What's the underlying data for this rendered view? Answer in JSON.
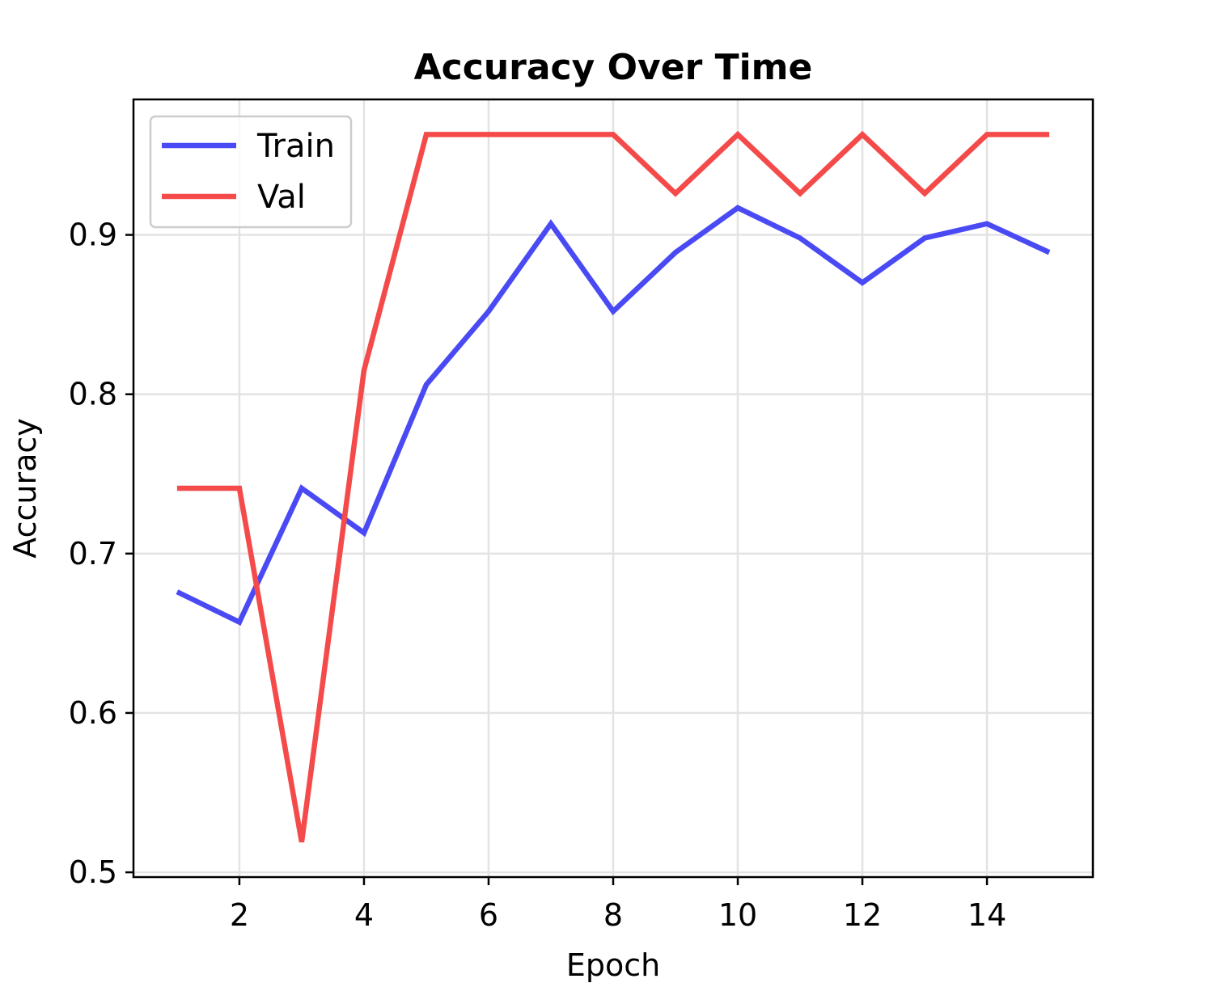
{
  "chart_data": {
    "type": "line",
    "title": "Accuracy Over Time",
    "xlabel": "Epoch",
    "ylabel": "Accuracy",
    "x": [
      1,
      2,
      3,
      4,
      5,
      6,
      7,
      8,
      9,
      10,
      11,
      12,
      13,
      14,
      15
    ],
    "series": [
      {
        "name": "Train",
        "color": "#4a4af5",
        "values": [
          0.676,
          0.657,
          0.741,
          0.713,
          0.806,
          0.852,
          0.907,
          0.852,
          0.889,
          0.917,
          0.898,
          0.87,
          0.898,
          0.907,
          0.889
        ]
      },
      {
        "name": "Val",
        "color": "#f54a4a",
        "values": [
          0.741,
          0.741,
          0.519,
          0.815,
          0.963,
          0.963,
          0.963,
          0.963,
          0.926,
          0.963,
          0.926,
          0.963,
          0.926,
          0.963,
          0.963
        ]
      }
    ],
    "xlim": [
      0.3,
      15.7
    ],
    "ylim": [
      0.497,
      0.985
    ],
    "xticks": [
      2,
      4,
      6,
      8,
      10,
      12,
      14
    ],
    "yticks": [
      0.5,
      0.6,
      0.7,
      0.8,
      0.9
    ],
    "xtick_labels": [
      "2",
      "4",
      "6",
      "8",
      "10",
      "12",
      "14"
    ],
    "ytick_labels": [
      "0.5",
      "0.6",
      "0.7",
      "0.8",
      "0.9"
    ],
    "grid": true,
    "legend_position": "upper left"
  }
}
